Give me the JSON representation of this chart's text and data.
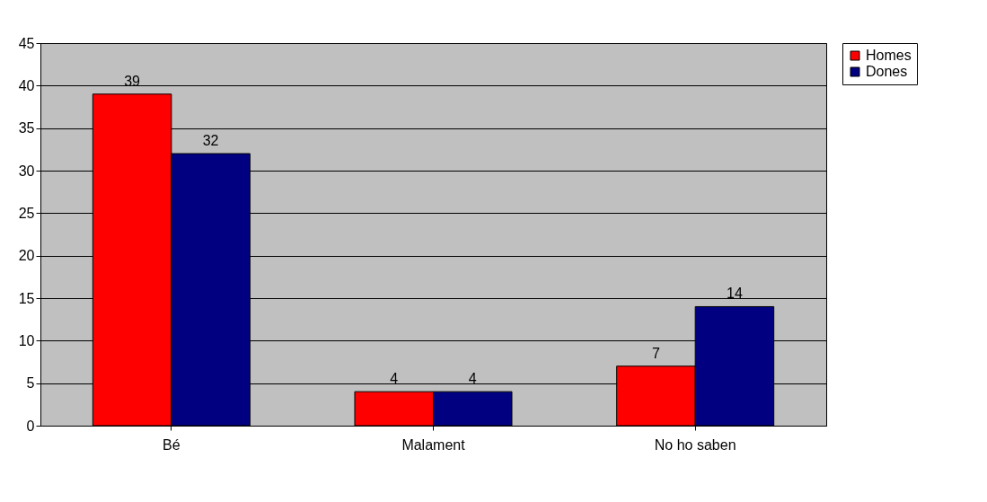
{
  "chart_data": {
    "type": "bar",
    "categories": [
      "Bé",
      "Malament",
      "No ho saben"
    ],
    "series": [
      {
        "name": "Homes",
        "color": "#ff0000",
        "values": [
          39,
          4,
          7
        ]
      },
      {
        "name": "Dones",
        "color": "#000080",
        "values": [
          32,
          4,
          14
        ]
      }
    ],
    "ylim": [
      0,
      45
    ],
    "yticks": [
      0,
      5,
      10,
      15,
      20,
      25,
      30,
      35,
      40,
      45
    ],
    "grid": "y",
    "legend": "right",
    "data_labels": true
  }
}
